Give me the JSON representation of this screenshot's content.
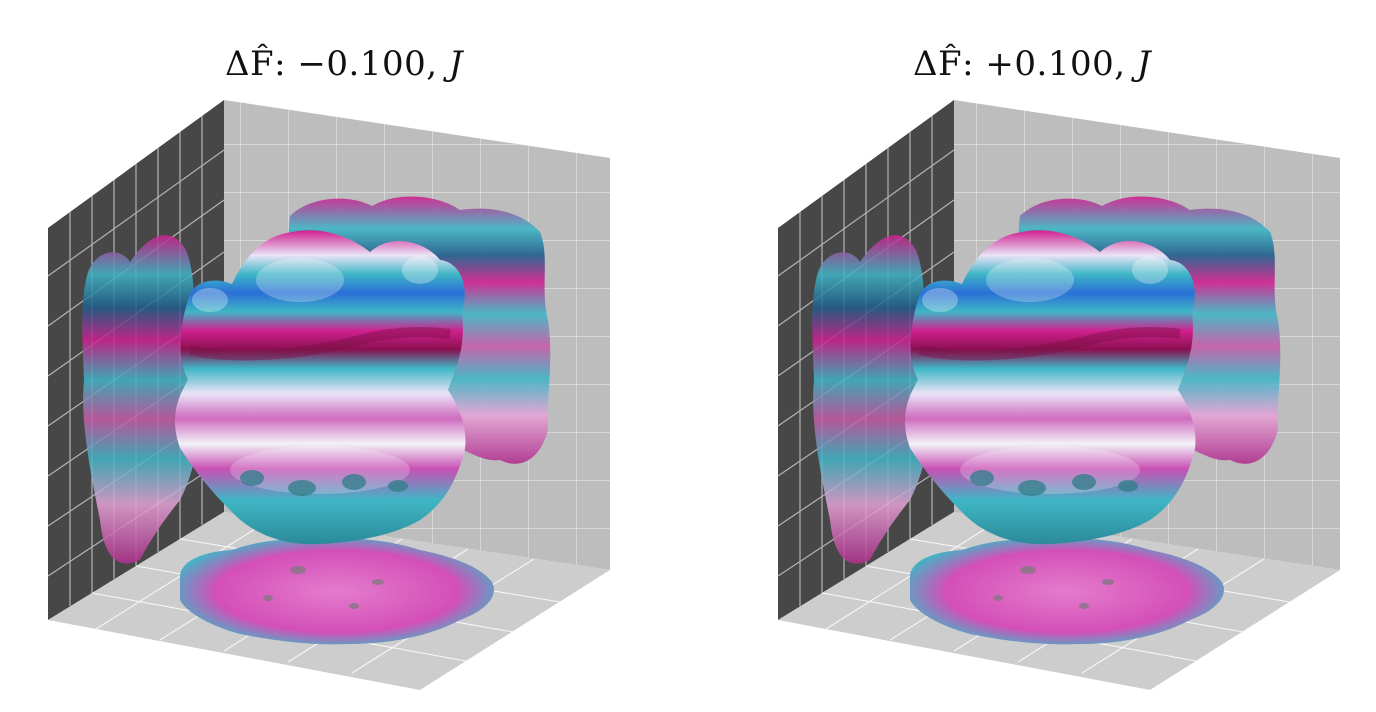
{
  "panels": [
    {
      "symbol": "ΔF̂:",
      "value": "−0.100,",
      "variable": "J"
    },
    {
      "symbol": "ΔF̂:",
      "value": "+0.100,",
      "variable": "J"
    }
  ],
  "colors": {
    "magenta": "#d0208f",
    "cyan": "#3fb6c6",
    "blue": "#2a6fd6",
    "white_highlight": "#f2f2f7",
    "left_wall": "#4a4a4a",
    "back_wall": "#bdbdbd",
    "floor": "#cfcfcf",
    "grid_line": "#ffffff"
  }
}
